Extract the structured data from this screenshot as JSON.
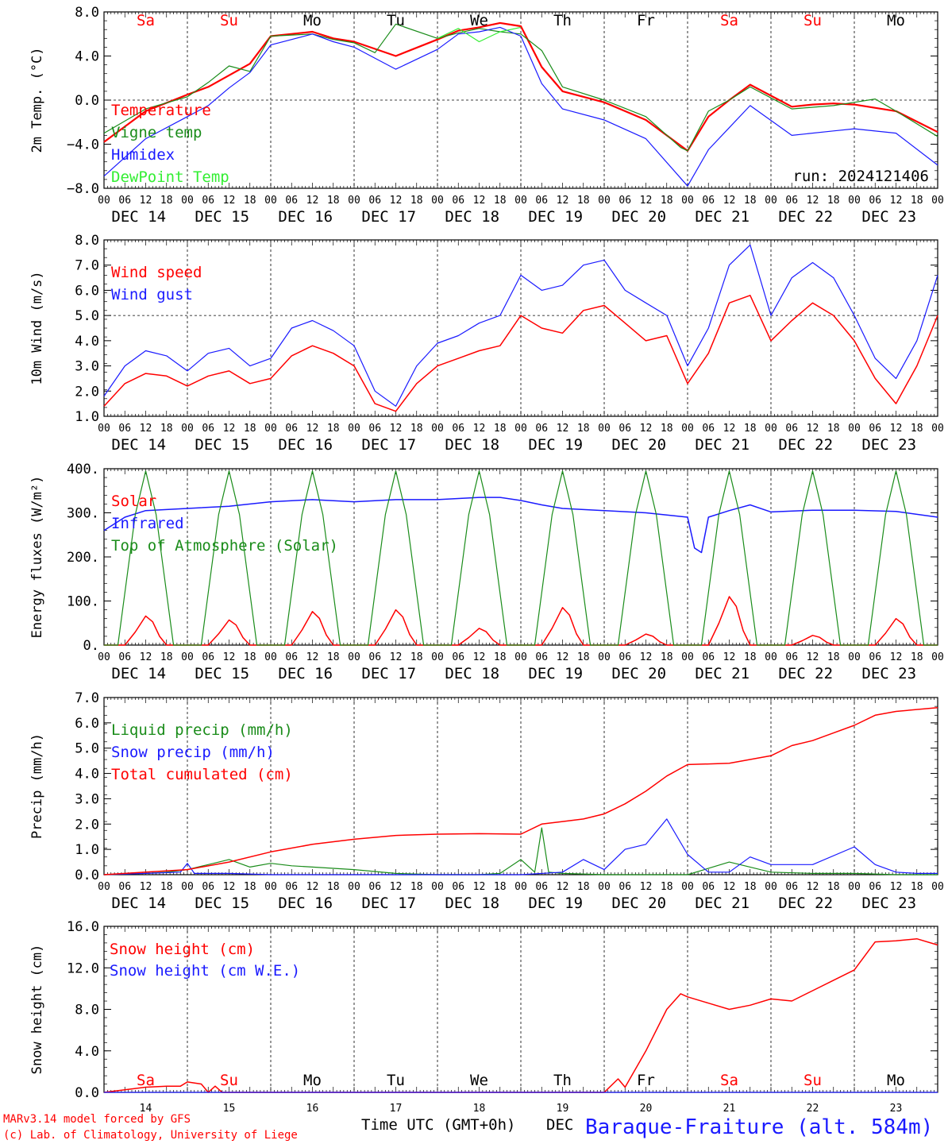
{
  "colors": {
    "red": "#ff0000",
    "darkgreen": "#1a8c1a",
    "lightgreen": "#33ee33",
    "blue": "#1a1aff",
    "black": "#000000"
  },
  "hour_labels": [
    "00",
    "06",
    "12",
    "18"
  ],
  "hour_label_end": "00",
  "dates": [
    "DEC 14",
    "DEC 15",
    "DEC 16",
    "DEC 17",
    "DEC 18",
    "DEC 19",
    "DEC 20",
    "DEC 21",
    "DEC 22",
    "DEC 23"
  ],
  "weekdays": [
    {
      "label": "Sa",
      "color": "#ff0000"
    },
    {
      "label": "Su",
      "color": "#ff0000"
    },
    {
      "label": "Mo",
      "color": "#000000"
    },
    {
      "label": "Tu",
      "color": "#000000"
    },
    {
      "label": "We",
      "color": "#000000"
    },
    {
      "label": "Th",
      "color": "#000000"
    },
    {
      "label": "Fr",
      "color": "#000000"
    },
    {
      "label": "Sa",
      "color": "#ff0000"
    },
    {
      "label": "Su",
      "color": "#ff0000"
    },
    {
      "label": "Mo",
      "color": "#000000"
    }
  ],
  "day_numbers": [
    "14",
    "15",
    "16",
    "17",
    "18",
    "19",
    "20",
    "21",
    "22",
    "23"
  ],
  "footer": {
    "model": "MARv3.14 model forced by GFS",
    "credit": "(c) Lab. of Climatology, University of Liege",
    "time_label": "Time UTC (GMT+0h)",
    "month": "DEC",
    "station": "Baraque-Fraiture (alt. 584m)"
  },
  "chart_data": [
    {
      "type": "line",
      "ylabel": "2m Temp. (°C)",
      "ylim": [
        -8,
        8
      ],
      "yticks": [
        8.0,
        4.0,
        0.0,
        -4.0,
        -8.0
      ],
      "ytick_labels": [
        "8.0",
        "4.0",
        "0.0",
        "−4.0",
        "−8.0"
      ],
      "ref_lines": [
        0
      ],
      "annotation": "run: 2024121406",
      "x_unit": "hours since Dec 14 00 UTC",
      "series": [
        {
          "name": "Temperature",
          "color": "#ff0000",
          "width": 2.2,
          "x": [
            0,
            12,
            24,
            30,
            42,
            48,
            60,
            66,
            72,
            84,
            96,
            102,
            108,
            114,
            120,
            126,
            132,
            144,
            156,
            168,
            174,
            180,
            186,
            198,
            204,
            210,
            216,
            228,
            240
          ],
          "values": [
            -3.8,
            -1.0,
            0.5,
            1.2,
            3.3,
            5.8,
            6.2,
            5.6,
            5.3,
            4.0,
            5.5,
            6.3,
            6.6,
            7.0,
            6.7,
            3.0,
            0.8,
            -0.2,
            -1.8,
            -4.6,
            -1.5,
            0.0,
            1.4,
            -0.6,
            -0.4,
            -0.3,
            -0.4,
            -1.0,
            -2.9
          ]
        },
        {
          "name": "Vigne temp",
          "color": "#1a8c1a",
          "width": 1.2,
          "x": [
            0,
            12,
            24,
            30,
            36,
            42,
            48,
            60,
            66,
            72,
            78,
            84,
            96,
            102,
            108,
            114,
            120,
            126,
            132,
            144,
            156,
            166,
            168,
            174,
            180,
            186,
            198,
            210,
            216,
            222,
            228,
            240
          ],
          "values": [
            -3.0,
            -0.8,
            0.3,
            1.6,
            3.1,
            2.6,
            5.8,
            6.0,
            5.5,
            5.2,
            4.3,
            6.9,
            5.6,
            6.1,
            6.5,
            6.2,
            6.0,
            4.5,
            1.2,
            0.0,
            -1.5,
            -4.3,
            -4.6,
            -1.0,
            0.0,
            1.2,
            -0.8,
            -0.5,
            -0.2,
            0.1,
            -1.0,
            -3.3
          ]
        },
        {
          "name": "Humidex",
          "color": "#1a1aff",
          "width": 1.2,
          "x": [
            0,
            12,
            24,
            30,
            36,
            42,
            48,
            60,
            66,
            72,
            84,
            96,
            102,
            108,
            114,
            120,
            126,
            132,
            144,
            156,
            168,
            174,
            180,
            186,
            198,
            210,
            216,
            228,
            240
          ],
          "values": [
            -6.9,
            -3.5,
            -1.5,
            -0.5,
            1.1,
            2.5,
            5.0,
            6.0,
            5.3,
            4.8,
            2.8,
            4.6,
            6.0,
            6.2,
            6.6,
            5.8,
            1.5,
            -0.8,
            -1.8,
            -3.5,
            -7.8,
            -4.5,
            -2.5,
            -0.5,
            -3.2,
            -2.8,
            -2.6,
            -3.0,
            -5.9
          ]
        },
        {
          "name": "DewPoint Temp",
          "color": "#33ee33",
          "width": 1.2,
          "x": [
            96,
            102,
            108,
            114,
            120
          ],
          "values": [
            5.6,
            6.5,
            5.3,
            6.2,
            6.6
          ]
        }
      ]
    },
    {
      "type": "line",
      "ylabel": "10m Wind (m/s)",
      "ylim": [
        1,
        8
      ],
      "yticks": [
        8.0,
        7.0,
        6.0,
        5.0,
        4.0,
        3.0,
        2.0,
        1.0
      ],
      "ytick_labels": [
        "8.0",
        "7.0",
        "6.0",
        "5.0",
        "4.0",
        "3.0",
        "2.0",
        "1.0"
      ],
      "ref_lines": [
        5
      ],
      "x_unit": "hours since Dec 14 00 UTC",
      "series": [
        {
          "name": "Wind speed",
          "color": "#ff0000",
          "width": 1.5,
          "x": [
            0,
            6,
            12,
            18,
            24,
            30,
            36,
            42,
            48,
            54,
            60,
            66,
            72,
            78,
            84,
            90,
            96,
            102,
            108,
            114,
            120,
            126,
            132,
            138,
            144,
            150,
            156,
            162,
            168,
            174,
            180,
            186,
            192,
            198,
            204,
            210,
            216,
            222,
            228,
            234,
            240
          ],
          "values": [
            1.4,
            2.3,
            2.7,
            2.6,
            2.2,
            2.6,
            2.8,
            2.3,
            2.5,
            3.4,
            3.8,
            3.5,
            3.0,
            1.5,
            1.2,
            2.3,
            3.0,
            3.3,
            3.6,
            3.8,
            5.0,
            4.5,
            4.3,
            5.2,
            5.4,
            4.7,
            4.0,
            4.2,
            2.3,
            3.5,
            5.5,
            5.8,
            4.0,
            4.8,
            5.5,
            5.0,
            4.0,
            2.5,
            1.5,
            3.0,
            5.0
          ]
        },
        {
          "name": "Wind gust",
          "color": "#1a1aff",
          "width": 1.2,
          "x": [
            0,
            6,
            12,
            18,
            24,
            30,
            36,
            42,
            48,
            54,
            60,
            66,
            72,
            78,
            84,
            90,
            96,
            102,
            108,
            114,
            120,
            126,
            132,
            138,
            144,
            150,
            156,
            162,
            168,
            174,
            180,
            186,
            192,
            198,
            204,
            210,
            216,
            222,
            228,
            234,
            240
          ],
          "values": [
            1.8,
            3.0,
            3.6,
            3.4,
            2.8,
            3.5,
            3.7,
            3.0,
            3.3,
            4.5,
            4.8,
            4.4,
            3.8,
            2.0,
            1.4,
            3.0,
            3.9,
            4.2,
            4.7,
            5.0,
            6.6,
            6.0,
            6.2,
            7.0,
            7.2,
            6.0,
            5.5,
            5.0,
            3.0,
            4.5,
            7.0,
            7.8,
            5.0,
            6.5,
            7.1,
            6.5,
            5.0,
            3.3,
            2.5,
            4.0,
            6.6
          ]
        }
      ]
    },
    {
      "type": "line",
      "ylabel": "Energy fluxes (W/m²)",
      "ylim": [
        0,
        400
      ],
      "yticks": [
        400,
        300,
        200,
        100,
        0
      ],
      "ytick_labels": [
        "400.",
        "300.",
        "200.",
        "100.",
        "0."
      ],
      "ref_lines": [],
      "x_unit": "hours since Dec 14 00 UTC",
      "solar_peaks": [
        66,
        57,
        76,
        80,
        38,
        85,
        25,
        110,
        22,
        60
      ],
      "toa_peak": 395,
      "series": [
        {
          "name": "Solar",
          "color": "#ff0000",
          "width": 1.5
        },
        {
          "name": "Infrared",
          "color": "#1a1aff",
          "width": 1.5,
          "x": [
            0,
            6,
            12,
            24,
            36,
            48,
            60,
            72,
            84,
            96,
            108,
            114,
            120,
            126,
            132,
            144,
            156,
            168,
            170,
            172,
            174,
            180,
            186,
            192,
            204,
            216,
            228,
            240
          ],
          "values": [
            260,
            290,
            305,
            310,
            315,
            325,
            330,
            325,
            330,
            330,
            335,
            335,
            328,
            318,
            310,
            305,
            300,
            290,
            220,
            210,
            290,
            305,
            318,
            302,
            306,
            306,
            303,
            290
          ]
        },
        {
          "name": "Top of Atmosphere (Solar)",
          "color": "#1a8c1a",
          "width": 1.2
        }
      ]
    },
    {
      "type": "line",
      "ylabel": "Precip (mm/h)",
      "ylim": [
        0,
        7
      ],
      "yticks": [
        7.0,
        6.0,
        5.0,
        4.0,
        3.0,
        2.0,
        1.0,
        0.0
      ],
      "ytick_labels": [
        "7.0",
        "6.0",
        "5.0",
        "4.0",
        "3.0",
        "2.0",
        "1.0",
        "0.0"
      ],
      "ref_lines": [],
      "x_unit": "hours since Dec 14 00 UTC",
      "series": [
        {
          "name": "Liquid precip (mm/h)",
          "color": "#1a8c1a",
          "width": 1.2,
          "x": [
            0,
            12,
            18,
            24,
            30,
            36,
            42,
            48,
            54,
            60,
            72,
            84,
            96,
            108,
            114,
            120,
            124,
            126,
            128,
            132,
            144,
            156,
            168,
            180,
            192,
            204,
            216,
            228,
            240
          ],
          "values": [
            0,
            0.05,
            0.1,
            0.2,
            0.4,
            0.6,
            0.3,
            0.45,
            0.35,
            0.3,
            0.2,
            0.05,
            0,
            0,
            0.05,
            0.6,
            0.1,
            1.85,
            0.1,
            0.05,
            0,
            0,
            0,
            0.5,
            0.1,
            0.05,
            0.05,
            0,
            0
          ]
        },
        {
          "name": "Snow precip (mm/h)",
          "color": "#1a1aff",
          "width": 1.2,
          "x": [
            0,
            12,
            22,
            24,
            26,
            36,
            48,
            60,
            72,
            96,
            120,
            132,
            138,
            144,
            150,
            156,
            162,
            168,
            174,
            180,
            186,
            192,
            204,
            216,
            222,
            228,
            234,
            240
          ],
          "values": [
            0,
            0.05,
            0.1,
            0.45,
            0.05,
            0.05,
            0,
            0,
            0,
            0,
            0,
            0.1,
            0.6,
            0.2,
            1.0,
            1.2,
            2.2,
            0.8,
            0.1,
            0.1,
            0.7,
            0.4,
            0.4,
            1.1,
            0.4,
            0.1,
            0.05,
            0.05
          ]
        },
        {
          "name": "Total cumulated (cm)",
          "color": "#ff0000",
          "width": 1.5,
          "x": [
            0,
            12,
            24,
            36,
            48,
            60,
            72,
            84,
            96,
            108,
            120,
            126,
            132,
            138,
            144,
            150,
            156,
            162,
            168,
            180,
            192,
            198,
            204,
            210,
            216,
            222,
            228,
            240
          ],
          "values": [
            0,
            0.1,
            0.2,
            0.5,
            0.9,
            1.2,
            1.4,
            1.55,
            1.6,
            1.62,
            1.6,
            2.0,
            2.1,
            2.2,
            2.4,
            2.8,
            3.3,
            3.9,
            4.35,
            4.4,
            4.7,
            5.1,
            5.3,
            5.6,
            5.9,
            6.3,
            6.45,
            6.6
          ]
        }
      ]
    },
    {
      "type": "line",
      "ylabel": "Snow height (cm)",
      "ylim": [
        0,
        16
      ],
      "yticks": [
        16.0,
        12.0,
        8.0,
        4.0,
        0.0
      ],
      "ytick_labels": [
        "16.0",
        "12.0",
        "8.0",
        "4.0",
        "0.0"
      ],
      "ref_lines": [],
      "x_unit": "hours since Dec 14 00 UTC",
      "series": [
        {
          "name": "Snow height (cm)",
          "color": "#ff0000",
          "width": 1.5,
          "x": [
            0,
            12,
            18,
            22,
            24,
            28,
            30,
            32,
            34,
            36,
            144,
            148,
            150,
            156,
            162,
            166,
            168,
            174,
            180,
            186,
            192,
            198,
            204,
            210,
            216,
            222,
            228,
            234,
            240
          ],
          "values": [
            0,
            0.5,
            0.6,
            0.6,
            1.0,
            0.8,
            0.0,
            0.6,
            0.0,
            0.0,
            0.0,
            1.3,
            0.5,
            4.0,
            8.0,
            9.5,
            9.2,
            8.6,
            8.0,
            8.4,
            9.0,
            8.8,
            9.8,
            10.8,
            11.8,
            14.5,
            14.6,
            14.8,
            14.2
          ]
        },
        {
          "name": "Snow height (cm W.E.)",
          "color": "#1a1aff",
          "width": 1.2,
          "x": [
            0,
            240
          ],
          "values": [
            0,
            0
          ]
        }
      ]
    }
  ]
}
